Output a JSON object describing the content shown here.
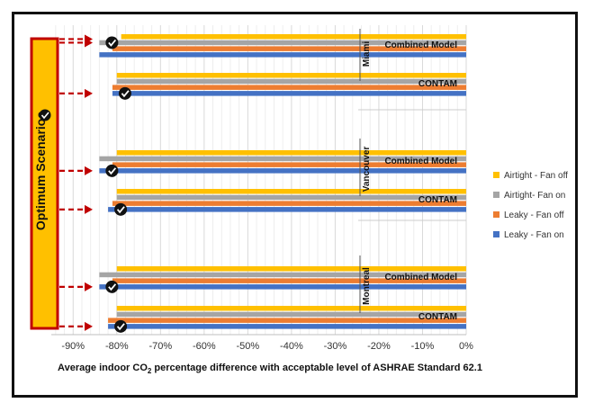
{
  "chart_data": {
    "type": "bar",
    "orientation": "horizontal",
    "title": "",
    "xlabel_prefix": "Average indoor CO",
    "xlabel_sub": "2",
    "xlabel_suffix": " percentage difference with acceptable level of ASHRAE Standard 62.1",
    "xlim": [
      -95,
      0
    ],
    "ticks": [
      -90,
      -80,
      -70,
      -60,
      -50,
      -40,
      -30,
      -20,
      -10,
      0
    ],
    "tick_labels": [
      "-90%",
      "-80%",
      "-70%",
      "-60%",
      "-50%",
      "-40%",
      "-30%",
      "-20%",
      "-10%",
      "0%"
    ],
    "grid": true,
    "legend_position": "right",
    "series": [
      {
        "name": "Airtight - Fan off",
        "color": "#FFC000"
      },
      {
        "name": "Airtight- Fan on",
        "color": "#A5A5A5"
      },
      {
        "name": "Leaky - Fan off",
        "color": "#ED7D31"
      },
      {
        "name": "Leaky - Fan on",
        "color": "#4472C4"
      }
    ],
    "groups": [
      {
        "city": "Miami",
        "model": "Combined Model",
        "values": [
          -79,
          -84,
          -81,
          -84
        ],
        "optimum_index": 1
      },
      {
        "city": "Miami",
        "model": "CONTAM",
        "values": [
          -80,
          -80,
          -81,
          -81
        ],
        "optimum_index": 3
      },
      {
        "city": "Vancouver",
        "model": "Combined Model",
        "values": [
          -80,
          -84,
          -81,
          -84
        ],
        "optimum_index": 3
      },
      {
        "city": "Vancouver",
        "model": "CONTAM",
        "values": [
          -80,
          -80,
          -81,
          -82
        ],
        "optimum_index": 3
      },
      {
        "city": "Montreal",
        "model": "Combined Model",
        "values": [
          -80,
          -84,
          -81,
          -84
        ],
        "optimum_index": 3
      },
      {
        "city": "Montreal",
        "model": "CONTAM",
        "values": [
          -80,
          -80,
          -82,
          -82
        ],
        "optimum_index": 3
      }
    ],
    "cities": [
      "Miami",
      "Vancouver",
      "Montreal"
    ],
    "side_label": "Optimum Scenarios"
  }
}
